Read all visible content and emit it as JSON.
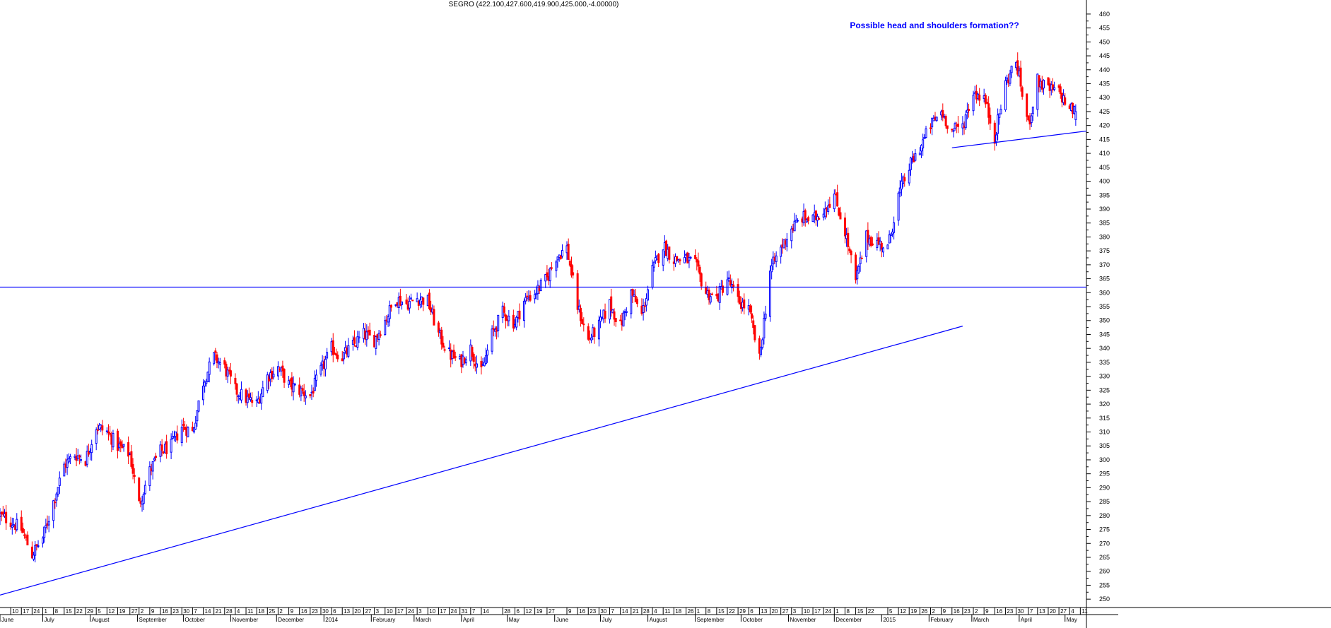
{
  "chart_data": {
    "type": "candlestick",
    "title": "SEGRO (422.100,427.600,419.900,425.000,-4.00000)",
    "annotation": "Possible head and shoulders formation??",
    "colors": {
      "up": "#0000ff",
      "down": "#ff0000",
      "lines": "#0000ff",
      "annotation": "#0000ff"
    },
    "y_axis": {
      "ylim": [
        247,
        462
      ],
      "ticks": [
        250,
        255,
        260,
        265,
        270,
        275,
        280,
        285,
        290,
        295,
        300,
        305,
        310,
        315,
        320,
        325,
        330,
        335,
        340,
        345,
        350,
        355,
        360,
        365,
        370,
        375,
        380,
        385,
        390,
        395,
        400,
        405,
        410,
        415,
        420,
        425,
        430,
        435,
        440,
        445,
        450,
        455,
        460
      ]
    },
    "x_axis": {
      "xlim": [
        "2013-06-03",
        "2015-05-15"
      ],
      "months": [
        {
          "label": "June",
          "date": "2013-06-01"
        },
        {
          "label": "July",
          "date": "2013-07-01"
        },
        {
          "label": "August",
          "date": "2013-08-01"
        },
        {
          "label": "September",
          "date": "2013-09-01"
        },
        {
          "label": "October",
          "date": "2013-10-01"
        },
        {
          "label": "November",
          "date": "2013-11-01"
        },
        {
          "label": "December",
          "date": "2013-12-01"
        },
        {
          "label": "2014",
          "date": "2014-01-01"
        },
        {
          "label": "February",
          "date": "2014-02-01"
        },
        {
          "label": "March",
          "date": "2014-03-01"
        },
        {
          "label": "April",
          "date": "2014-04-01"
        },
        {
          "label": "May",
          "date": "2014-05-01"
        },
        {
          "label": "June",
          "date": "2014-06-01"
        },
        {
          "label": "July",
          "date": "2014-07-01"
        },
        {
          "label": "August",
          "date": "2014-08-01"
        },
        {
          "label": "September",
          "date": "2014-09-01"
        },
        {
          "label": "October",
          "date": "2014-10-01"
        },
        {
          "label": "November",
          "date": "2014-11-01"
        },
        {
          "label": "December",
          "date": "2014-12-01"
        },
        {
          "label": "2015",
          "date": "2015-01-01"
        },
        {
          "label": "February",
          "date": "2015-02-01"
        },
        {
          "label": "March",
          "date": "2015-03-01"
        },
        {
          "label": "April",
          "date": "2015-04-01"
        },
        {
          "label": "May",
          "date": "2015-05-01"
        }
      ],
      "day_ticks": [
        [
          "2013-06-10",
          "10"
        ],
        [
          "2013-06-17",
          "17"
        ],
        [
          "2013-06-24",
          "24"
        ],
        [
          "2013-07-01",
          "1"
        ],
        [
          "2013-07-08",
          "8"
        ],
        [
          "2013-07-15",
          "15"
        ],
        [
          "2013-07-22",
          "22"
        ],
        [
          "2013-07-29",
          "29"
        ],
        [
          "2013-08-05",
          "5"
        ],
        [
          "2013-08-12",
          "12"
        ],
        [
          "2013-08-19",
          "19"
        ],
        [
          "2013-08-27",
          "27"
        ],
        [
          "2013-09-02",
          "2"
        ],
        [
          "2013-09-09",
          "9"
        ],
        [
          "2013-09-16",
          "16"
        ],
        [
          "2013-09-23",
          "23"
        ],
        [
          "2013-09-30",
          "30"
        ],
        [
          "2013-10-07",
          "7"
        ],
        [
          "2013-10-14",
          "14"
        ],
        [
          "2013-10-21",
          "21"
        ],
        [
          "2013-10-28",
          "28"
        ],
        [
          "2013-11-04",
          "4"
        ],
        [
          "2013-11-11",
          "11"
        ],
        [
          "2013-11-18",
          "18"
        ],
        [
          "2013-11-25",
          "25"
        ],
        [
          "2013-12-02",
          "2"
        ],
        [
          "2013-12-09",
          "9"
        ],
        [
          "2013-12-16",
          "16"
        ],
        [
          "2013-12-23",
          "23"
        ],
        [
          "2013-12-30",
          "30"
        ],
        [
          "2014-01-06",
          "6"
        ],
        [
          "2014-01-13",
          "13"
        ],
        [
          "2014-01-20",
          "20"
        ],
        [
          "2014-01-27",
          "27"
        ],
        [
          "2014-02-03",
          "3"
        ],
        [
          "2014-02-10",
          "10"
        ],
        [
          "2014-02-17",
          "17"
        ],
        [
          "2014-02-24",
          "24"
        ],
        [
          "2014-03-03",
          "3"
        ],
        [
          "2014-03-10",
          "10"
        ],
        [
          "2014-03-17",
          "17"
        ],
        [
          "2014-03-24",
          "24"
        ],
        [
          "2014-03-31",
          "31"
        ],
        [
          "2014-04-07",
          "7"
        ],
        [
          "2014-04-14",
          "14"
        ],
        [
          "2014-04-28",
          "28"
        ],
        [
          "2014-05-06",
          "6"
        ],
        [
          "2014-05-12",
          "12"
        ],
        [
          "2014-05-19",
          "19"
        ],
        [
          "2014-05-27",
          "27"
        ],
        [
          "2014-06-09",
          "9"
        ],
        [
          "2014-06-16",
          "16"
        ],
        [
          "2014-06-23",
          "23"
        ],
        [
          "2014-06-30",
          "30"
        ],
        [
          "2014-07-07",
          "7"
        ],
        [
          "2014-07-14",
          "14"
        ],
        [
          "2014-07-21",
          "21"
        ],
        [
          "2014-07-28",
          "28"
        ],
        [
          "2014-08-04",
          "4"
        ],
        [
          "2014-08-11",
          "11"
        ],
        [
          "2014-08-18",
          "18"
        ],
        [
          "2014-08-26",
          "26"
        ],
        [
          "2014-09-01",
          "1"
        ],
        [
          "2014-09-08",
          "8"
        ],
        [
          "2014-09-15",
          "15"
        ],
        [
          "2014-09-22",
          "22"
        ],
        [
          "2014-09-29",
          "29"
        ],
        [
          "2014-10-06",
          "6"
        ],
        [
          "2014-10-13",
          "13"
        ],
        [
          "2014-10-20",
          "20"
        ],
        [
          "2014-10-27",
          "27"
        ],
        [
          "2014-11-03",
          "3"
        ],
        [
          "2014-11-10",
          "10"
        ],
        [
          "2014-11-17",
          "17"
        ],
        [
          "2014-11-24",
          "24"
        ],
        [
          "2014-12-01",
          "1"
        ],
        [
          "2014-12-08",
          "8"
        ],
        [
          "2014-12-15",
          "15"
        ],
        [
          "2014-12-22",
          "22"
        ],
        [
          "2015-01-05",
          "5"
        ],
        [
          "2015-01-12",
          "12"
        ],
        [
          "2015-01-19",
          "19"
        ],
        [
          "2015-01-26",
          "26"
        ],
        [
          "2015-02-02",
          "2"
        ],
        [
          "2015-02-09",
          "9"
        ],
        [
          "2015-02-16",
          "16"
        ],
        [
          "2015-02-23",
          "23"
        ],
        [
          "2015-03-02",
          "2"
        ],
        [
          "2015-03-09",
          "9"
        ],
        [
          "2015-03-16",
          "16"
        ],
        [
          "2015-03-23",
          "23"
        ],
        [
          "2015-03-30",
          "30"
        ],
        [
          "2015-04-07",
          "7"
        ],
        [
          "2015-04-13",
          "13"
        ],
        [
          "2015-04-20",
          "20"
        ],
        [
          "2015-04-27",
          "27"
        ],
        [
          "2015-05-04",
          "4"
        ],
        [
          "2015-05-11",
          "11"
        ]
      ]
    },
    "price_path": [
      [
        "2013-06-03",
        280
      ],
      [
        "2013-06-10",
        278
      ],
      [
        "2013-06-17",
        275
      ],
      [
        "2013-06-24",
        266
      ],
      [
        "2013-07-01",
        272
      ],
      [
        "2013-07-08",
        285
      ],
      [
        "2013-07-15",
        298
      ],
      [
        "2013-07-22",
        302
      ],
      [
        "2013-07-29",
        300
      ],
      [
        "2013-08-05",
        312
      ],
      [
        "2013-08-12",
        310
      ],
      [
        "2013-08-19",
        305
      ],
      [
        "2013-08-27",
        302
      ],
      [
        "2013-09-02",
        284
      ],
      [
        "2013-09-09",
        296
      ],
      [
        "2013-09-16",
        303
      ],
      [
        "2013-09-23",
        305
      ],
      [
        "2013-09-30",
        312
      ],
      [
        "2013-10-07",
        310
      ],
      [
        "2013-10-14",
        328
      ],
      [
        "2013-10-21",
        337
      ],
      [
        "2013-10-28",
        333
      ],
      [
        "2013-11-04",
        325
      ],
      [
        "2013-11-11",
        322
      ],
      [
        "2013-11-18",
        320
      ],
      [
        "2013-11-25",
        330
      ],
      [
        "2013-12-02",
        333
      ],
      [
        "2013-12-09",
        327
      ],
      [
        "2013-12-16",
        325
      ],
      [
        "2013-12-23",
        323
      ],
      [
        "2013-12-30",
        332
      ],
      [
        "2014-01-06",
        340
      ],
      [
        "2014-01-13",
        337
      ],
      [
        "2014-01-20",
        341
      ],
      [
        "2014-01-27",
        345
      ],
      [
        "2014-02-03",
        343
      ],
      [
        "2014-02-10",
        350
      ],
      [
        "2014-02-17",
        358
      ],
      [
        "2014-02-24",
        356
      ],
      [
        "2014-03-03",
        358
      ],
      [
        "2014-03-10",
        357
      ],
      [
        "2014-03-17",
        345
      ],
      [
        "2014-03-24",
        338
      ],
      [
        "2014-03-31",
        335
      ],
      [
        "2014-04-07",
        340
      ],
      [
        "2014-04-14",
        331
      ],
      [
        "2014-04-21",
        345
      ],
      [
        "2014-04-28",
        353
      ],
      [
        "2014-05-06",
        349
      ],
      [
        "2014-05-12",
        357
      ],
      [
        "2014-05-19",
        360
      ],
      [
        "2014-05-27",
        365
      ],
      [
        "2014-06-02",
        373
      ],
      [
        "2014-06-09",
        376
      ],
      [
        "2014-06-16",
        355
      ],
      [
        "2014-06-23",
        343
      ],
      [
        "2014-06-30",
        348
      ],
      [
        "2014-07-07",
        356
      ],
      [
        "2014-07-14",
        348
      ],
      [
        "2014-07-21",
        360
      ],
      [
        "2014-07-28",
        352
      ],
      [
        "2014-08-04",
        368
      ],
      [
        "2014-08-11",
        377
      ],
      [
        "2014-08-18",
        372
      ],
      [
        "2014-08-26",
        372
      ],
      [
        "2014-09-01",
        370
      ],
      [
        "2014-09-08",
        360
      ],
      [
        "2014-09-15",
        358
      ],
      [
        "2014-09-22",
        365
      ],
      [
        "2014-09-29",
        357
      ],
      [
        "2014-10-06",
        354
      ],
      [
        "2014-10-13",
        336
      ],
      [
        "2014-10-20",
        368
      ],
      [
        "2014-10-27",
        376
      ],
      [
        "2014-11-03",
        383
      ],
      [
        "2014-11-10",
        387
      ],
      [
        "2014-11-17",
        386
      ],
      [
        "2014-11-24",
        390
      ],
      [
        "2014-12-01",
        395
      ],
      [
        "2014-12-08",
        382
      ],
      [
        "2014-12-15",
        364
      ],
      [
        "2014-12-22",
        380
      ],
      [
        "2015-01-05",
        376
      ],
      [
        "2015-01-12",
        395
      ],
      [
        "2015-01-19",
        405
      ],
      [
        "2015-01-26",
        412
      ],
      [
        "2015-02-02",
        420
      ],
      [
        "2015-02-09",
        425
      ],
      [
        "2015-02-16",
        418
      ],
      [
        "2015-02-23",
        420
      ],
      [
        "2015-03-02",
        432
      ],
      [
        "2015-03-09",
        430
      ],
      [
        "2015-03-16",
        416
      ],
      [
        "2015-03-23",
        435
      ],
      [
        "2015-03-30",
        443
      ],
      [
        "2015-04-07",
        420
      ],
      [
        "2015-04-13",
        436
      ],
      [
        "2015-04-20",
        433
      ],
      [
        "2015-04-27",
        432
      ],
      [
        "2015-05-04",
        426
      ],
      [
        "2015-05-08",
        425
      ]
    ],
    "last_bar": {
      "open": 422.1,
      "high": 427.6,
      "low": 419.9,
      "close": 425.0
    },
    "trendlines": [
      {
        "from": [
          "2013-05-31",
          251
        ],
        "to": [
          "2015-02-23",
          348
        ]
      },
      {
        "from": [
          "2015-02-16",
          412
        ],
        "to": [
          "2015-05-15",
          418
        ]
      }
    ],
    "horizontal_lines": [
      362
    ]
  }
}
